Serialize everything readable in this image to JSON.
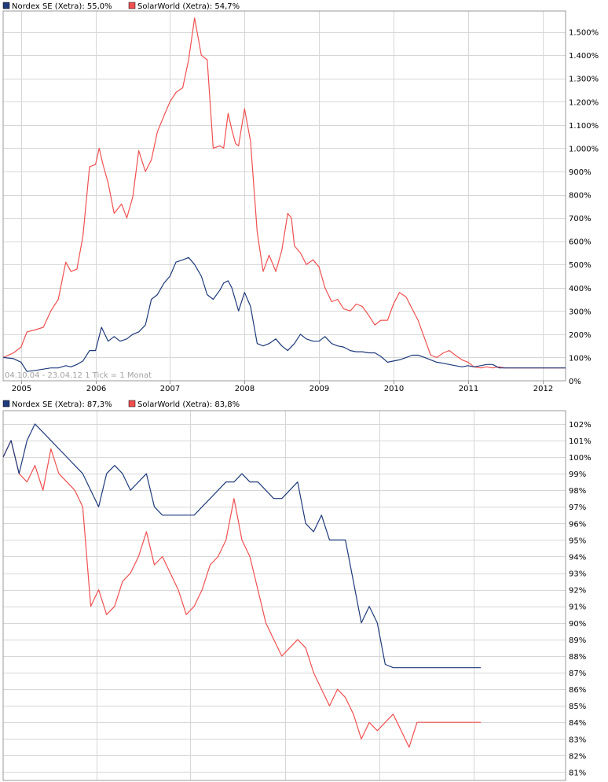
{
  "chart_data": [
    {
      "type": "line",
      "legend": [
        {
          "label": "Nordex SE (Xetra): 55,0%",
          "color": "#1f3a7a"
        },
        {
          "label": "SolarWorld (Xetra): 54,7%",
          "color": "#f05050"
        }
      ],
      "legend_position": "top-left",
      "note": "04.10.04 - 23.04.12   1 Tick = 1 Monat",
      "x_ticks": [
        {
          "label": "2005",
          "x": 2005.0
        },
        {
          "label": "2006",
          "x": 2006.0
        },
        {
          "label": "2007",
          "x": 2007.0
        },
        {
          "label": "2008",
          "x": 2008.0
        },
        {
          "label": "2009",
          "x": 2009.0
        },
        {
          "label": "2010",
          "x": 2010.0
        },
        {
          "label": "2011",
          "x": 2011.0
        },
        {
          "label": "2012",
          "x": 2012.0
        }
      ],
      "xlim": [
        2004.76,
        2012.31
      ],
      "ylim": [
        0,
        1590
      ],
      "y_ticks": [
        {
          "label": "0%",
          "v": 0
        },
        {
          "label": "100%",
          "v": 100
        },
        {
          "label": "200%",
          "v": 200
        },
        {
          "label": "300%",
          "v": 300
        },
        {
          "label": "400%",
          "v": 400
        },
        {
          "label": "500%",
          "v": 500
        },
        {
          "label": "600%",
          "v": 600
        },
        {
          "label": "700%",
          "v": 700
        },
        {
          "label": "800%",
          "v": 800
        },
        {
          "label": "900%",
          "v": 900
        },
        {
          "label": "1.000%",
          "v": 1000
        },
        {
          "label": "1.100%",
          "v": 1100
        },
        {
          "label": "1.200%",
          "v": 1200
        },
        {
          "label": "1.300%",
          "v": 1300
        },
        {
          "label": "1.400%",
          "v": 1400
        },
        {
          "label": "1.500%",
          "v": 1500
        }
      ],
      "series": [
        {
          "name": "SolarWorld (Xetra)",
          "color": "#f05050",
          "x": [
            2004.76,
            2004.9,
            2005.0,
            2005.08,
            2005.2,
            2005.3,
            2005.4,
            2005.5,
            2005.6,
            2005.67,
            2005.75,
            2005.83,
            2005.92,
            2006.0,
            2006.05,
            2006.1,
            2006.17,
            2006.25,
            2006.35,
            2006.42,
            2006.5,
            2006.58,
            2006.67,
            2006.75,
            2006.83,
            2006.92,
            2007.0,
            2007.08,
            2007.17,
            2007.25,
            2007.33,
            2007.42,
            2007.5,
            2007.58,
            2007.67,
            2007.72,
            2007.78,
            2007.83,
            2007.88,
            2007.92,
            2008.0,
            2008.08,
            2008.17,
            2008.25,
            2008.33,
            2008.42,
            2008.5,
            2008.58,
            2008.63,
            2008.67,
            2008.75,
            2008.83,
            2008.92,
            2009.0,
            2009.08,
            2009.17,
            2009.25,
            2009.33,
            2009.42,
            2009.5,
            2009.58,
            2009.67,
            2009.75,
            2009.83,
            2009.92,
            2010.0,
            2010.08,
            2010.17,
            2010.25,
            2010.33,
            2010.42,
            2010.5,
            2010.58,
            2010.67,
            2010.75,
            2010.83,
            2010.92,
            2011.0,
            2011.08,
            2011.17,
            2011.25,
            2011.33,
            2011.42,
            2011.5,
            2011.58,
            2011.67,
            2011.75,
            2011.83,
            2011.92,
            2012.0,
            2012.08,
            2012.17,
            2012.25,
            2012.31
          ],
          "y": [
            100,
            120,
            145,
            210,
            220,
            230,
            300,
            350,
            510,
            470,
            480,
            620,
            920,
            930,
            1000,
            930,
            850,
            720,
            760,
            700,
            790,
            990,
            900,
            950,
            1070,
            1140,
            1200,
            1240,
            1260,
            1380,
            1560,
            1400,
            1380,
            1000,
            1010,
            1000,
            1150,
            1080,
            1020,
            1010,
            1170,
            1030,
            640,
            470,
            540,
            470,
            560,
            720,
            700,
            580,
            550,
            500,
            520,
            490,
            400,
            340,
            350,
            310,
            300,
            330,
            320,
            280,
            240,
            260,
            260,
            330,
            380,
            360,
            310,
            260,
            180,
            110,
            100,
            120,
            130,
            110,
            90,
            80,
            60,
            55,
            60,
            55,
            60,
            55,
            55,
            55,
            55,
            55,
            55,
            55,
            55,
            55,
            55,
            55
          ],
          "endpoint_value": 54.7
        },
        {
          "name": "Nordex SE (Xetra)",
          "color": "#1f3a7a",
          "x": [
            2004.76,
            2004.9,
            2005.0,
            2005.08,
            2005.2,
            2005.3,
            2005.4,
            2005.5,
            2005.6,
            2005.67,
            2005.75,
            2005.83,
            2005.92,
            2006.0,
            2006.08,
            2006.17,
            2006.25,
            2006.33,
            2006.42,
            2006.5,
            2006.58,
            2006.67,
            2006.75,
            2006.83,
            2006.92,
            2007.0,
            2007.08,
            2007.17,
            2007.25,
            2007.33,
            2007.42,
            2007.5,
            2007.58,
            2007.67,
            2007.72,
            2007.78,
            2007.83,
            2007.92,
            2008.0,
            2008.08,
            2008.17,
            2008.25,
            2008.33,
            2008.42,
            2008.5,
            2008.58,
            2008.67,
            2008.75,
            2008.83,
            2008.92,
            2009.0,
            2009.08,
            2009.17,
            2009.25,
            2009.33,
            2009.42,
            2009.5,
            2009.58,
            2009.67,
            2009.75,
            2009.83,
            2009.92,
            2010.0,
            2010.08,
            2010.17,
            2010.25,
            2010.33,
            2010.42,
            2010.5,
            2010.58,
            2010.67,
            2010.75,
            2010.83,
            2010.92,
            2011.0,
            2011.08,
            2011.17,
            2011.25,
            2011.33,
            2011.42,
            2011.5,
            2011.58,
            2011.67,
            2011.75,
            2011.83,
            2011.92,
            2012.0,
            2012.08,
            2012.17,
            2012.25,
            2012.31
          ],
          "y": [
            100,
            95,
            80,
            40,
            45,
            50,
            55,
            55,
            65,
            60,
            70,
            85,
            130,
            130,
            230,
            170,
            190,
            170,
            180,
            200,
            210,
            240,
            350,
            370,
            420,
            450,
            510,
            520,
            530,
            500,
            450,
            370,
            350,
            390,
            420,
            430,
            400,
            300,
            380,
            320,
            160,
            150,
            160,
            180,
            150,
            130,
            160,
            200,
            180,
            170,
            170,
            190,
            160,
            150,
            145,
            130,
            125,
            125,
            120,
            120,
            105,
            80,
            85,
            90,
            100,
            110,
            110,
            100,
            90,
            80,
            75,
            70,
            65,
            60,
            65,
            60,
            65,
            70,
            70,
            55,
            55,
            55,
            55,
            55,
            55,
            55,
            55,
            55,
            55,
            55,
            55
          ],
          "endpoint_value": 55.0
        }
      ]
    },
    {
      "type": "line",
      "legend": [
        {
          "label": "Nordex SE (Xetra): 87,3%",
          "color": "#1f3a7a"
        },
        {
          "label": "SolarWorld (Xetra): 83,8%",
          "color": "#f05050"
        }
      ],
      "legend_position": "top-left",
      "ylim": [
        80.5,
        102.8
      ],
      "y_ticks": [
        {
          "label": "81%",
          "v": 81
        },
        {
          "label": "82%",
          "v": 82
        },
        {
          "label": "83%",
          "v": 83
        },
        {
          "label": "84%",
          "v": 84
        },
        {
          "label": "85%",
          "v": 85
        },
        {
          "label": "86%",
          "v": 86
        },
        {
          "label": "87%",
          "v": 87
        },
        {
          "label": "88%",
          "v": 88
        },
        {
          "label": "89%",
          "v": 89
        },
        {
          "label": "90%",
          "v": 90
        },
        {
          "label": "91%",
          "v": 91
        },
        {
          "label": "92%",
          "v": 92
        },
        {
          "label": "93%",
          "v": 93
        },
        {
          "label": "94%",
          "v": 94
        },
        {
          "label": "95%",
          "v": 95
        },
        {
          "label": "96%",
          "v": 96
        },
        {
          "label": "97%",
          "v": 97
        },
        {
          "label": "98%",
          "v": 98
        },
        {
          "label": "99%",
          "v": 99
        },
        {
          "label": "100%",
          "v": 100
        },
        {
          "label": "101%",
          "v": 101
        },
        {
          "label": "102%",
          "v": 102
        }
      ],
      "series": [
        {
          "name": "SolarWorld (Xetra)",
          "color": "#f05050",
          "x": [
            0,
            5,
            10,
            15,
            20,
            25,
            30,
            35,
            40,
            45,
            50,
            55,
            60,
            65,
            70,
            75,
            80,
            85,
            90,
            95,
            100,
            105,
            110,
            115,
            120,
            125,
            130,
            135,
            140,
            145,
            150,
            155,
            160,
            165,
            170,
            175,
            180,
            185,
            190,
            195,
            200,
            205,
            210,
            215,
            220,
            225,
            230,
            235,
            240,
            245,
            250,
            255,
            260,
            265,
            270,
            275,
            280,
            285,
            290,
            295,
            300
          ],
          "y": [
            100,
            101,
            99,
            98.5,
            99.5,
            98,
            100.5,
            99,
            98.5,
            98,
            97,
            91,
            92,
            90.5,
            91,
            92.5,
            93,
            94,
            95.5,
            93.5,
            94,
            93,
            92,
            90.5,
            91,
            92,
            93.5,
            94,
            95,
            97.5,
            95,
            94,
            92,
            90,
            89,
            88,
            88.5,
            89,
            88.5,
            87,
            86,
            85,
            86,
            85.5,
            84.5,
            83,
            84,
            83.5,
            84,
            84.5,
            83.5,
            82.5,
            84,
            84,
            84,
            84,
            84,
            84,
            84,
            84,
            84
          ],
          "endpoint_value": 83.8
        },
        {
          "name": "Nordex SE (Xetra)",
          "color": "#1f3a7a",
          "x": [
            0,
            5,
            10,
            15,
            20,
            25,
            30,
            35,
            40,
            45,
            50,
            55,
            60,
            65,
            70,
            75,
            80,
            85,
            90,
            95,
            100,
            105,
            110,
            115,
            120,
            125,
            130,
            135,
            140,
            145,
            150,
            155,
            160,
            165,
            170,
            175,
            180,
            185,
            190,
            195,
            200,
            205,
            210,
            215,
            220,
            225,
            230,
            235,
            240,
            245,
            250,
            255,
            260,
            265,
            270,
            275,
            280,
            285,
            290,
            295,
            300
          ],
          "y": [
            100,
            101,
            99,
            101,
            102,
            101.5,
            101,
            100.5,
            100,
            99.5,
            99,
            98,
            97,
            99,
            99.5,
            99,
            98,
            98.5,
            99,
            97,
            96.5,
            96.5,
            96.5,
            96.5,
            96.5,
            97,
            97.5,
            98,
            98.5,
            98.5,
            99,
            98.5,
            98.5,
            98,
            97.5,
            97.5,
            98,
            98.5,
            96,
            95.5,
            96.5,
            95,
            95,
            95,
            92.5,
            90,
            91,
            90,
            87.5,
            87.3,
            87.3,
            87.3,
            87.3,
            87.3,
            87.3,
            87.3,
            87.3,
            87.3,
            87.3,
            87.3,
            87.3
          ],
          "endpoint_value": 87.3
        }
      ]
    }
  ]
}
